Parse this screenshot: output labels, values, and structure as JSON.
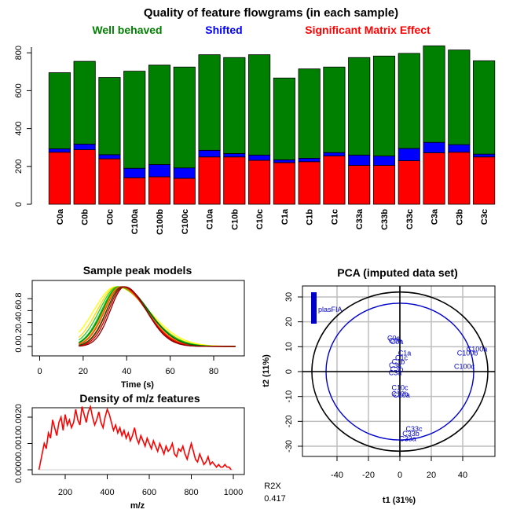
{
  "chart_data": [
    {
      "type": "bar",
      "stacked": true,
      "title": "Quality of feature flowgrams (in each sample)",
      "legend": [
        {
          "name": "Well behaved",
          "color": "#008000"
        },
        {
          "name": "Shifted",
          "color": "#0000ff"
        },
        {
          "name": "Significant Matrix Effect",
          "color": "#ff0000"
        }
      ],
      "categories": [
        "C0a",
        "C0b",
        "C0c",
        "C100a",
        "C100b",
        "C100c",
        "C10a",
        "C10b",
        "C10c",
        "C1a",
        "C1b",
        "C1c",
        "C33a",
        "C33b",
        "C33c",
        "C3a",
        "C3b",
        "C3c"
      ],
      "series": [
        {
          "name": "Significant Matrix Effect",
          "color": "#ff0000",
          "values": [
            275,
            288,
            240,
            140,
            145,
            137,
            250,
            250,
            232,
            220,
            225,
            255,
            205,
            205,
            230,
            272,
            275,
            250
          ]
        },
        {
          "name": "Shifted",
          "color": "#0000ff",
          "values": [
            18,
            30,
            22,
            50,
            65,
            55,
            35,
            18,
            28,
            15,
            18,
            18,
            55,
            50,
            65,
            55,
            40,
            15
          ]
        },
        {
          "name": "Well behaved",
          "color": "#008000",
          "values": [
            402,
            437,
            408,
            513,
            525,
            533,
            505,
            507,
            530,
            432,
            472,
            452,
            515,
            528,
            502,
            510,
            500,
            493
          ]
        }
      ],
      "ylim": [
        0,
        830
      ],
      "yticks": [
        0,
        200,
        400,
        600,
        800
      ]
    },
    {
      "type": "line",
      "title": "Sample peak models",
      "xlabel": "Time (s)",
      "xlim": [
        0,
        95
      ],
      "ylim": [
        0,
        1
      ],
      "xticks": [
        0,
        20,
        40,
        60,
        80
      ],
      "yticks": [
        "0.0",
        "0.2",
        "0.4",
        "0.6",
        "0.8"
      ],
      "peak_start": 18,
      "peak_end": 90,
      "curves": [
        {
          "mu": 35.0,
          "sl": 10.0,
          "sr": 15.0,
          "color": "#ffff00"
        },
        {
          "mu": 35.5,
          "sl": 9.0,
          "sr": 14.0,
          "color": "#ffd700"
        },
        {
          "mu": 36.0,
          "sl": 8.5,
          "sr": 13.5,
          "color": "#32cd32"
        },
        {
          "mu": 36.5,
          "sl": 8.0,
          "sr": 13.0,
          "color": "#00cc00"
        },
        {
          "mu": 37.0,
          "sl": 8.0,
          "sr": 12.5,
          "color": "#008000"
        },
        {
          "mu": 37.0,
          "sl": 7.5,
          "sr": 12.0,
          "color": "#ff8c00"
        },
        {
          "mu": 37.5,
          "sl": 7.5,
          "sr": 11.5,
          "color": "#ff4500"
        },
        {
          "mu": 38.0,
          "sl": 7.0,
          "sr": 11.0,
          "color": "#ff0000"
        },
        {
          "mu": 38.0,
          "sl": 7.2,
          "sr": 12.0,
          "color": "#006400"
        },
        {
          "mu": 38.5,
          "sl": 6.8,
          "sr": 10.5,
          "color": "#cc0000"
        },
        {
          "mu": 39.0,
          "sl": 6.5,
          "sr": 10.0,
          "color": "#8b0000"
        }
      ]
    },
    {
      "type": "line",
      "title": "Density of m/z features",
      "xlabel": "m/z",
      "xlim": [
        50,
        1030
      ],
      "ylim": [
        0,
        0.0027
      ],
      "xticks": [
        200,
        400,
        600,
        800,
        1000
      ],
      "yticks": [
        "0.0000",
        "0.0010",
        "0.0020"
      ],
      "color": "#ff0000",
      "x": [
        75,
        90,
        100,
        110,
        120,
        130,
        140,
        150,
        160,
        170,
        180,
        190,
        200,
        210,
        220,
        230,
        240,
        250,
        260,
        270,
        280,
        290,
        300,
        310,
        320,
        330,
        340,
        350,
        360,
        370,
        380,
        390,
        400,
        410,
        420,
        430,
        440,
        450,
        460,
        470,
        480,
        490,
        500,
        510,
        520,
        530,
        540,
        550,
        560,
        570,
        580,
        590,
        600,
        610,
        620,
        630,
        640,
        650,
        660,
        670,
        680,
        690,
        700,
        710,
        720,
        730,
        740,
        750,
        760,
        770,
        780,
        790,
        800,
        810,
        820,
        830,
        840,
        850,
        860,
        870,
        880,
        890,
        900,
        910,
        920,
        930,
        940,
        950,
        960,
        970,
        980,
        990
      ],
      "y": [
        0.0,
        0.0006,
        0.001,
        0.0008,
        0.0014,
        0.0012,
        0.0019,
        0.0016,
        0.0013,
        0.0018,
        0.002,
        0.0015,
        0.0021,
        0.0017,
        0.0019,
        0.0016,
        0.0018,
        0.0023,
        0.0019,
        0.0017,
        0.0024,
        0.0021,
        0.0018,
        0.0022,
        0.0024,
        0.002,
        0.0017,
        0.0019,
        0.0022,
        0.0018,
        0.0016,
        0.002,
        0.0023,
        0.0021,
        0.0018,
        0.0015,
        0.0017,
        0.0014,
        0.0016,
        0.0013,
        0.0015,
        0.0012,
        0.0014,
        0.0011,
        0.0013,
        0.0016,
        0.0012,
        0.001,
        0.0013,
        0.0011,
        0.0009,
        0.0012,
        0.001,
        0.0008,
        0.0011,
        0.0009,
        0.0007,
        0.001,
        0.0008,
        0.0006,
        0.0009,
        0.0007,
        0.0008,
        0.001,
        0.0006,
        0.0005,
        0.0008,
        0.0007,
        0.0009,
        0.0006,
        0.0004,
        0.0007,
        0.001,
        0.0007,
        0.0004,
        0.0003,
        0.0006,
        0.0004,
        0.0002,
        0.0003,
        0.0005,
        0.0002,
        0.0003,
        0.0002,
        0.0001,
        0.0002,
        0.0001,
        0.0001,
        0.0002,
        0.0001,
        0.0001,
        0.0
      ]
    },
    {
      "type": "scatter",
      "title": "PCA (imputed data set)",
      "xlabel": "t1 (31%)",
      "ylabel": "t2 (11%)",
      "xlim": [
        -60,
        60
      ],
      "ylim": [
        -33,
        34
      ],
      "xticks": [
        -40,
        -20,
        0,
        20,
        40
      ],
      "yticks": [
        -30,
        -20,
        -10,
        0,
        10,
        20,
        30
      ],
      "grid": true,
      "inner_ellipse": {
        "rx": 47,
        "ry": 27.5
      },
      "outer_ellipse": {
        "rx": 56,
        "ry": 32
      },
      "bar_label": "plasFIA",
      "r2x_label": "R2X",
      "r2x_value": "0.417",
      "points": [
        {
          "label": "C0c",
          "x": -4,
          "y": 13.5
        },
        {
          "label": "C0b",
          "x": -3,
          "y": 12.5
        },
        {
          "label": "C0a",
          "x": -2,
          "y": 12.0
        },
        {
          "label": "C1a",
          "x": 3,
          "y": 7.5
        },
        {
          "label": "C1c",
          "x": 1,
          "y": 5.5
        },
        {
          "label": "C1b",
          "x": -1,
          "y": 4.0
        },
        {
          "label": "C3c",
          "x": -3,
          "y": 2.5
        },
        {
          "label": "C3b",
          "x": -2,
          "y": 1.0
        },
        {
          "label": "C3a",
          "x": -3,
          "y": -0.5
        },
        {
          "label": "C10c",
          "x": 0,
          "y": -6.5
        },
        {
          "label": "C10b",
          "x": 0,
          "y": -9.0
        },
        {
          "label": "C10a",
          "x": 1,
          "y": -9.5
        },
        {
          "label": "C33c",
          "x": 9,
          "y": -23.0
        },
        {
          "label": "C33b",
          "x": 7,
          "y": -25.0
        },
        {
          "label": "C33a",
          "x": 5,
          "y": -27.0
        },
        {
          "label": "C100a",
          "x": 49,
          "y": 9.0
        },
        {
          "label": "C100b",
          "x": 43,
          "y": 7.5
        },
        {
          "label": "C100c",
          "x": 41,
          "y": 2.0
        }
      ]
    }
  ]
}
